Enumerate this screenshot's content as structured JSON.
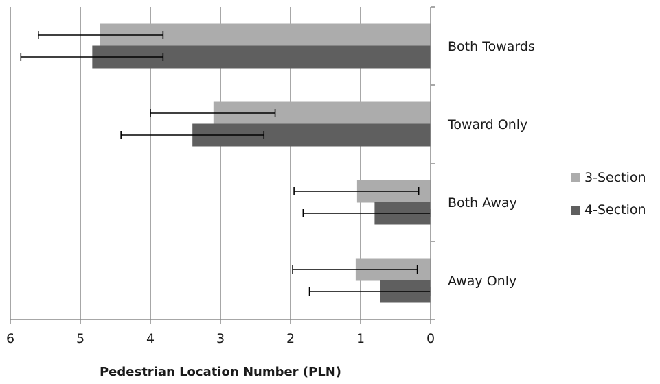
{
  "chart_data": {
    "type": "bar",
    "orientation": "horizontal",
    "x_axis_reversed": true,
    "categories": [
      "Both Towards",
      "Toward Only",
      "Both Away",
      "Away Only"
    ],
    "series": [
      {
        "name": "3-Section",
        "color": "#acacac",
        "values": [
          4.72,
          3.1,
          1.05,
          1.07
        ],
        "error_low": [
          3.82,
          2.22,
          0.17,
          0.19
        ],
        "error_high": [
          5.6,
          4.0,
          1.95,
          1.97
        ]
      },
      {
        "name": "4-Section",
        "color": "#5f5f5f",
        "values": [
          4.83,
          3.4,
          0.8,
          0.72
        ],
        "error_low": [
          3.82,
          2.38,
          0.0,
          0.0
        ],
        "error_high": [
          5.85,
          4.42,
          1.82,
          1.73
        ]
      }
    ],
    "xlim": [
      0,
      6
    ],
    "x_ticks": [
      "0",
      "1",
      "2",
      "3",
      "4",
      "5",
      "6"
    ],
    "xlabel": "Pedestrian Location Number (PLN)",
    "ylabel": "",
    "title": "",
    "grid": "vertical",
    "legend_position": "right"
  }
}
